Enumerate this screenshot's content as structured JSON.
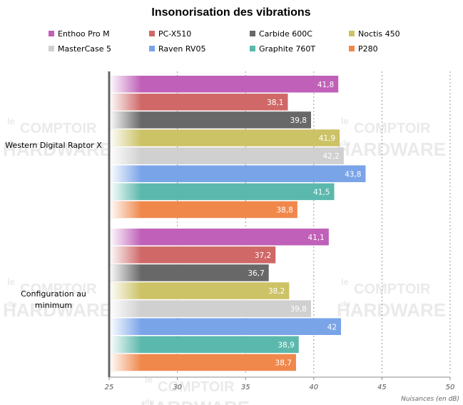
{
  "chart_data": {
    "type": "bar",
    "orientation": "horizontal",
    "title": "Insonorisation des vibrations",
    "xlabel": "Nuisances (en dB)",
    "ylabel": "",
    "xlim": [
      25,
      50
    ],
    "xticks": [
      25,
      30,
      35,
      40,
      45,
      50
    ],
    "grid": true,
    "legend_position": "top",
    "categories": [
      "Western Digital Raptor X",
      "Configuration au minimum"
    ],
    "series": [
      {
        "name": "Enthoo Pro M",
        "color": "#c060b8",
        "values": [
          41.8,
          41.1
        ]
      },
      {
        "name": "PC-X510",
        "color": "#d06868",
        "values": [
          38.1,
          37.2
        ]
      },
      {
        "name": "Carbide 600C",
        "color": "#686868",
        "values": [
          39.8,
          36.7
        ]
      },
      {
        "name": "Noctis 450",
        "color": "#ccc266",
        "values": [
          41.9,
          38.2
        ]
      },
      {
        "name": "MasterCase 5",
        "color": "#d0d0d0",
        "values": [
          42.2,
          39.8
        ]
      },
      {
        "name": "Raven RV05",
        "color": "#7aa4e8",
        "values": [
          43.8,
          42.0
        ]
      },
      {
        "name": "Graphite 760T",
        "color": "#5bb8ac",
        "values": [
          41.5,
          38.9
        ]
      },
      {
        "name": "P280",
        "color": "#f0884c",
        "values": [
          38.8,
          38.7
        ]
      }
    ],
    "value_labels": [
      [
        "41,8",
        "41,1"
      ],
      [
        "38,1",
        "37,2"
      ],
      [
        "39,8",
        "36,7"
      ],
      [
        "41,9",
        "38,2"
      ],
      [
        "42,2",
        "39,8"
      ],
      [
        "43,8",
        "42"
      ],
      [
        "41,5",
        "38,9"
      ],
      [
        "38,8",
        "38,7"
      ]
    ]
  },
  "watermark": {
    "line_small": "le",
    "line_top": "COMPTOIR",
    "line_small2": "du",
    "line_bottom": "HARDWARE"
  }
}
